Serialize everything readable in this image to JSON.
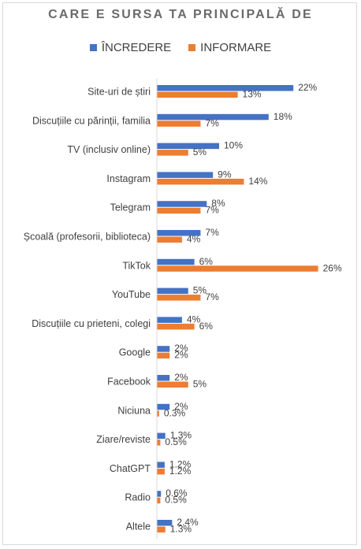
{
  "chart_data": {
    "type": "bar",
    "orientation": "horizontal",
    "title": "CARE E SURSA TA PRINCIPALĂ DE",
    "categories": [
      "Site-uri de știri",
      "Discuțiile cu părinții, familia",
      "TV (inclusiv online)",
      "Instagram",
      "Telegram",
      "Școală (profesorii, biblioteca)",
      "TikTok",
      "YouTube",
      "Discuțiile cu prieteni, colegi",
      "Google",
      "Facebook",
      "Niciuna",
      "Ziare/reviste",
      "ChatGPT",
      "Radio",
      "Altele"
    ],
    "series": [
      {
        "name": "ÎNCREDERE",
        "color": "#4472c4",
        "values": [
          22,
          18,
          10,
          9,
          8,
          7,
          6,
          5,
          4,
          2,
          2,
          2,
          1.3,
          1.2,
          0.6,
          2.4
        ],
        "labels": [
          "22%",
          "18%",
          "10%",
          "9%",
          "8%",
          "7%",
          "6%",
          "5%",
          "4%",
          "2%",
          "2%",
          "2%",
          "1.3%",
          "1.2%",
          "0.6%",
          "2.4%"
        ]
      },
      {
        "name": "INFORMARE",
        "color": "#ed7d31",
        "values": [
          13,
          7,
          5,
          14,
          7,
          4,
          26,
          7,
          6,
          2,
          5,
          0.3,
          0.5,
          1.2,
          0.5,
          1.3
        ],
        "labels": [
          "13%",
          "7%",
          "5%",
          "14%",
          "7%",
          "4%",
          "26%",
          "7%",
          "6%",
          "2%",
          "5%",
          "0.3%",
          "0.5%",
          "1.2%",
          "0.5%",
          "1.3%"
        ]
      }
    ],
    "xlim": [
      0,
      26
    ],
    "xlabel": "",
    "ylabel": "",
    "grid": false,
    "legend_position": "top"
  }
}
